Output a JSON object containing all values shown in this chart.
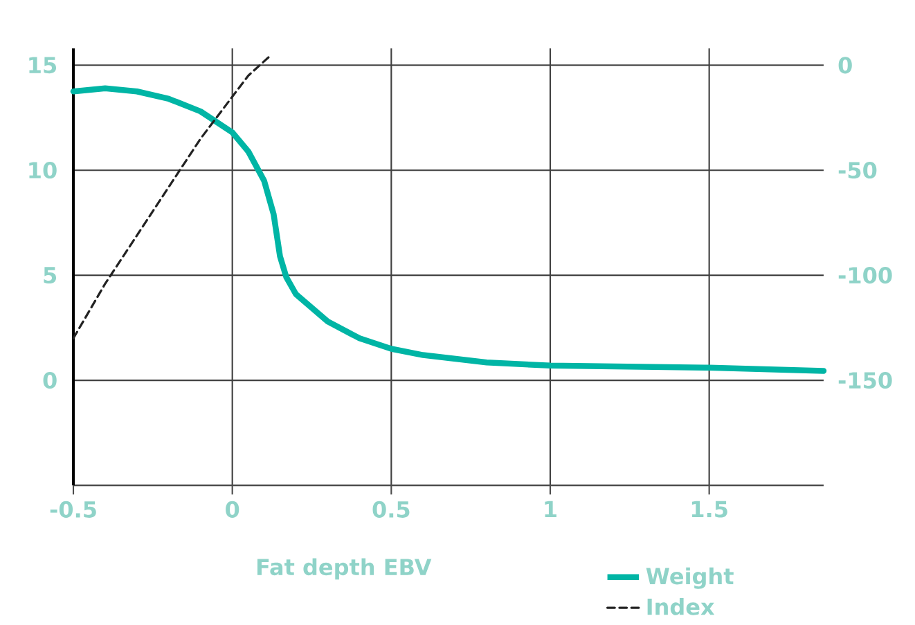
{
  "chart_data": {
    "type": "line",
    "xlabel": "Fat depth EBV",
    "xlim": [
      -0.5,
      1.86
    ],
    "xticks": [
      -0.5,
      0,
      0.5,
      1,
      1.5
    ],
    "ylim": [
      -5,
      15.8
    ],
    "yticks": [
      0,
      5,
      10,
      15
    ],
    "y2lim": [
      -200,
      8
    ],
    "y2ticks": [
      -150,
      -100,
      -50,
      0
    ],
    "grid": true,
    "legend": "bottom right",
    "series": [
      {
        "name": "Weight",
        "color": "#00b5a5",
        "line_style": "solid",
        "x": [
          -0.5,
          -0.4,
          -0.3,
          -0.2,
          -0.1,
          0,
          0.05,
          0.1,
          0.13,
          0.15,
          0.17,
          0.2,
          0.3,
          0.4,
          0.5,
          0.6,
          0.8,
          1.0,
          1.5,
          1.86
        ],
        "values": [
          13.75,
          13.9,
          13.75,
          13.4,
          12.8,
          11.8,
          10.9,
          9.5,
          7.9,
          5.9,
          4.9,
          4.1,
          2.8,
          2.0,
          1.5,
          1.2,
          0.85,
          0.7,
          0.6,
          0.45
        ]
      },
      {
        "name": "Index",
        "color": "#222222",
        "line_style": "dashed",
        "axis": "y2",
        "x": [
          -0.5,
          -0.4,
          -0.3,
          -0.2,
          -0.1,
          0,
          0.05,
          0.12
        ],
        "values": [
          -130,
          -104,
          -81,
          -58,
          -35,
          -15,
          -5,
          4.6
        ]
      }
    ]
  }
}
